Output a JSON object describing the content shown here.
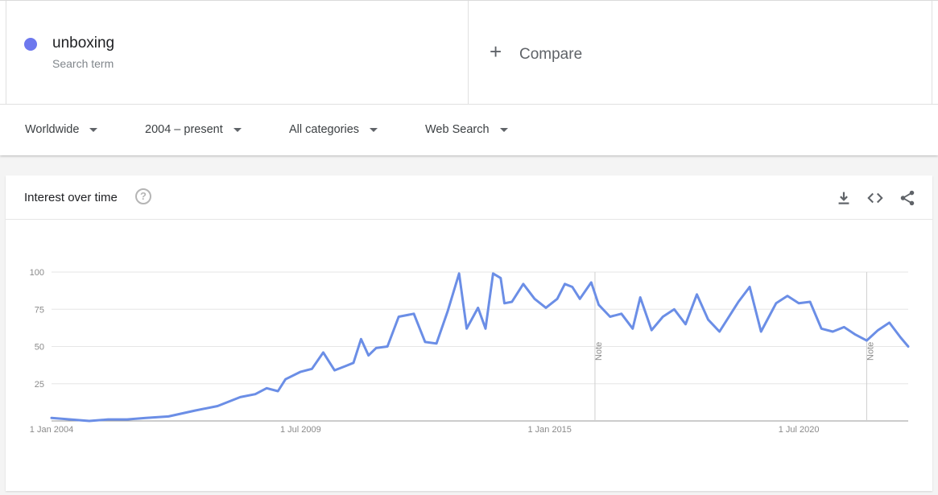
{
  "search_term": {
    "name": "unboxing",
    "subtitle": "Search term",
    "color": "#6d78ee"
  },
  "compare": {
    "label": "Compare",
    "icon": "plus-icon"
  },
  "filters": {
    "region": "Worldwide",
    "time_range": "2004 – present",
    "category": "All categories",
    "property": "Web Search"
  },
  "card": {
    "title": "Interest over time",
    "help_icon": "help-circle-icon",
    "tools": [
      "download-icon",
      "embed-code-icon",
      "share-icon"
    ]
  },
  "chart_data": {
    "type": "line",
    "title": "",
    "xlabel": "",
    "ylabel": "",
    "x_range": [
      "2004-01",
      "2022-12"
    ],
    "ylim": [
      0,
      100
    ],
    "yticks": [
      25,
      50,
      75,
      100
    ],
    "xticks": [
      {
        "label": "1 Jan 2004",
        "date": "2004-01"
      },
      {
        "label": "1 Jul 2009",
        "date": "2009-07"
      },
      {
        "label": "1 Jan 2015",
        "date": "2015-01"
      },
      {
        "label": "1 Jul 2020",
        "date": "2020-07"
      }
    ],
    "grid": true,
    "line_color": "#6b8ee6",
    "notes": [
      {
        "label": "Note",
        "date": "2016-01"
      },
      {
        "label": "Note",
        "date": "2022-01"
      }
    ],
    "series": [
      {
        "name": "unboxing",
        "x": [
          "2004-01",
          "2004-06",
          "2004-11",
          "2005-04",
          "2005-09",
          "2006-02",
          "2006-08",
          "2007-03",
          "2007-09",
          "2008-03",
          "2008-07",
          "2008-10",
          "2009-01",
          "2009-03",
          "2009-07",
          "2009-10",
          "2010-01",
          "2010-04",
          "2010-07",
          "2010-09",
          "2010-11",
          "2011-01",
          "2011-03",
          "2011-06",
          "2011-09",
          "2012-01",
          "2012-04",
          "2012-07",
          "2012-10",
          "2013-01",
          "2013-03",
          "2013-06",
          "2013-08",
          "2013-10",
          "2013-12",
          "2014-01",
          "2014-03",
          "2014-06",
          "2014-09",
          "2014-12",
          "2015-01",
          "2015-03",
          "2015-05",
          "2015-07",
          "2015-09",
          "2015-12",
          "2016-02",
          "2016-05",
          "2016-08",
          "2016-11",
          "2017-01",
          "2017-04",
          "2017-07",
          "2017-10",
          "2018-01",
          "2018-04",
          "2018-07",
          "2018-10",
          "2019-01",
          "2019-03",
          "2019-06",
          "2019-09",
          "2020-01",
          "2020-04",
          "2020-07",
          "2020-10",
          "2021-01",
          "2021-04",
          "2021-07",
          "2021-10",
          "2022-01",
          "2022-04",
          "2022-07",
          "2022-10",
          "2022-12"
        ],
        "values": [
          2,
          1,
          0,
          1,
          1,
          2,
          3,
          7,
          10,
          16,
          18,
          22,
          20,
          28,
          33,
          35,
          46,
          34,
          37,
          39,
          55,
          44,
          49,
          50,
          70,
          72,
          53,
          52,
          74,
          99,
          62,
          76,
          62,
          99,
          96,
          79,
          80,
          92,
          82,
          76,
          78,
          82,
          92,
          90,
          82,
          93,
          78,
          70,
          72,
          62,
          83,
          61,
          70,
          75,
          65,
          85,
          68,
          60,
          72,
          80,
          90,
          60,
          79,
          84,
          79,
          80,
          62,
          60,
          63,
          58,
          54,
          61,
          66,
          56,
          50
        ]
      }
    ]
  }
}
